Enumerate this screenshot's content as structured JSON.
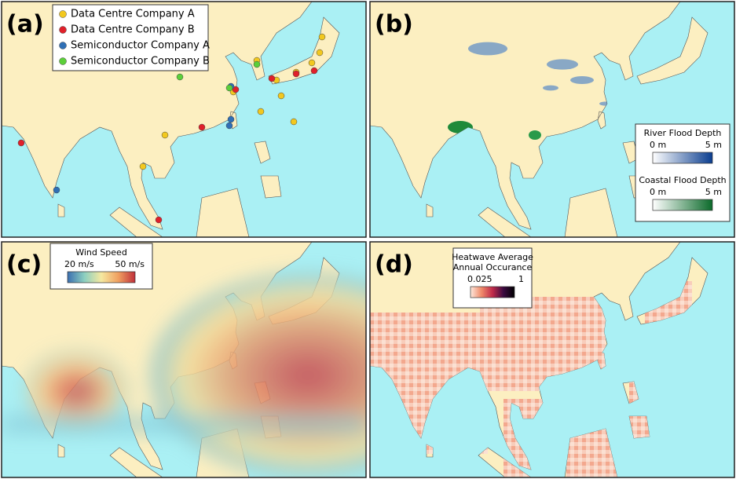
{
  "panels": [
    {
      "label": "(a)",
      "legend": [
        {
          "name": "Data Centre Company A",
          "color": "#f2c81f"
        },
        {
          "name": "Data Centre Company B",
          "color": "#e0202a"
        },
        {
          "name": "Semiconductor Company A",
          "color": "#2f6fb5"
        },
        {
          "name": "Semiconductor Company B",
          "color": "#5ccf3a"
        }
      ]
    },
    {
      "label": "(b)",
      "legend": [
        {
          "title": "River Flood Depth",
          "min": "0 m",
          "max": "5 m",
          "colors": [
            "#ffffff",
            "#0a3d8f"
          ]
        },
        {
          "title": "Coastal Flood Depth",
          "min": "0 m",
          "max": "5 m",
          "colors": [
            "#ffffff",
            "#0b6a2a"
          ]
        }
      ]
    },
    {
      "label": "(c)",
      "legend": [
        {
          "title": "Wind Speed",
          "min": "20 m/s",
          "max": "50 m/s",
          "colors": [
            "#3b6fb0",
            "#8ccfc0",
            "#f5e8a0",
            "#f0a060",
            "#c0303a"
          ]
        }
      ]
    },
    {
      "label": "(d)",
      "legend": [
        {
          "title": "Heatwave Average",
          "subtitle": "Annual Occurance",
          "min": "0.025",
          "max": "1",
          "colors": [
            "#fde8dc",
            "#f08a6a",
            "#c02a4a",
            "#3a0a40",
            "#000000"
          ]
        }
      ]
    }
  ]
}
